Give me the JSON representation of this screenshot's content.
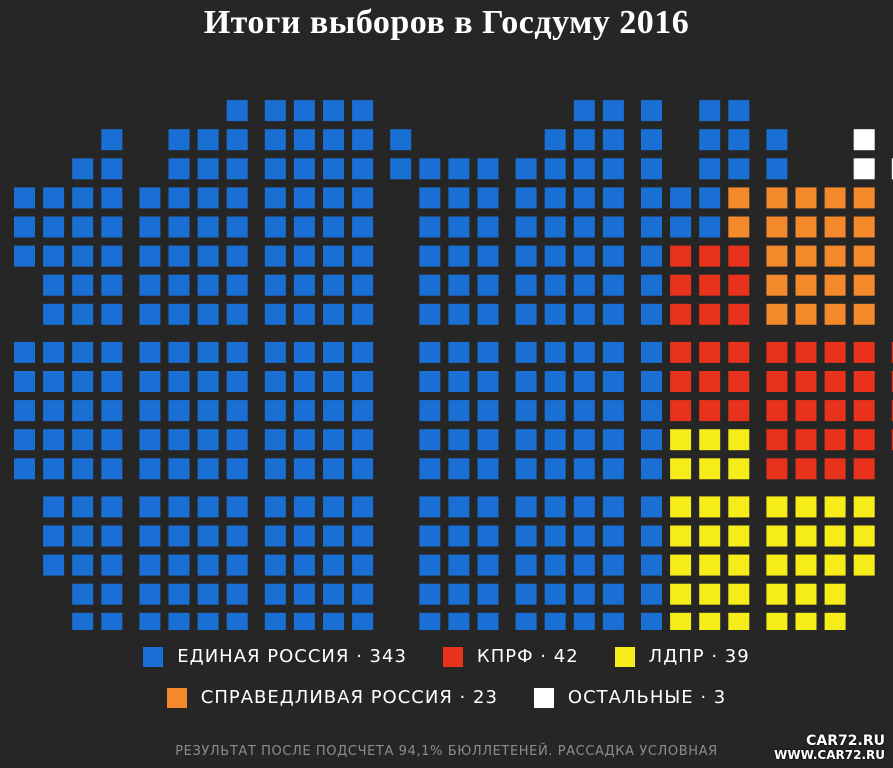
{
  "title": "Итоги выборов в Госдуму 2016",
  "footnote": "РЕЗУЛЬТАТ ПОСЛЕ ПОДСЧЕТА 94,1% БЮЛЛЕТЕНЕЙ. РАССАДКА УСЛОВНАЯ",
  "watermark": {
    "line1": "CAR72.RU",
    "line2": "WWW.CAR72.RU"
  },
  "colors": {
    "background": "#262626",
    "ER": "#1a6fd4",
    "KPRF": "#e8321b",
    "LDPR": "#f5ec1a",
    "SR": "#f4892b",
    "OTHER": "#ffffff"
  },
  "chart_data": {
    "type": "seat-parliament",
    "title": "Итоги выборов в Госдуму 2016",
    "categories": [
      "ЕДИНАЯ РОССИЯ",
      "КПРФ",
      "ЛДПР",
      "СПРАВЕДЛИВАЯ РОССИЯ",
      "ОСТАЛЬНЫЕ"
    ],
    "values": [
      343,
      42,
      39,
      23,
      3
    ],
    "legend": [
      {
        "key": "ER",
        "label": "ЕДИНАЯ РОССИЯ · 343"
      },
      {
        "key": "KPRF",
        "label": "КПРФ · 42"
      },
      {
        "key": "LDPR",
        "label": "ЛДПР · 39"
      },
      {
        "key": "SR",
        "label": "СПРАВЕДЛИВАЯ РОССИЯ · 23"
      },
      {
        "key": "OTHER",
        "label": "ОСТАЛЬНЫЕ · 3"
      }
    ]
  }
}
